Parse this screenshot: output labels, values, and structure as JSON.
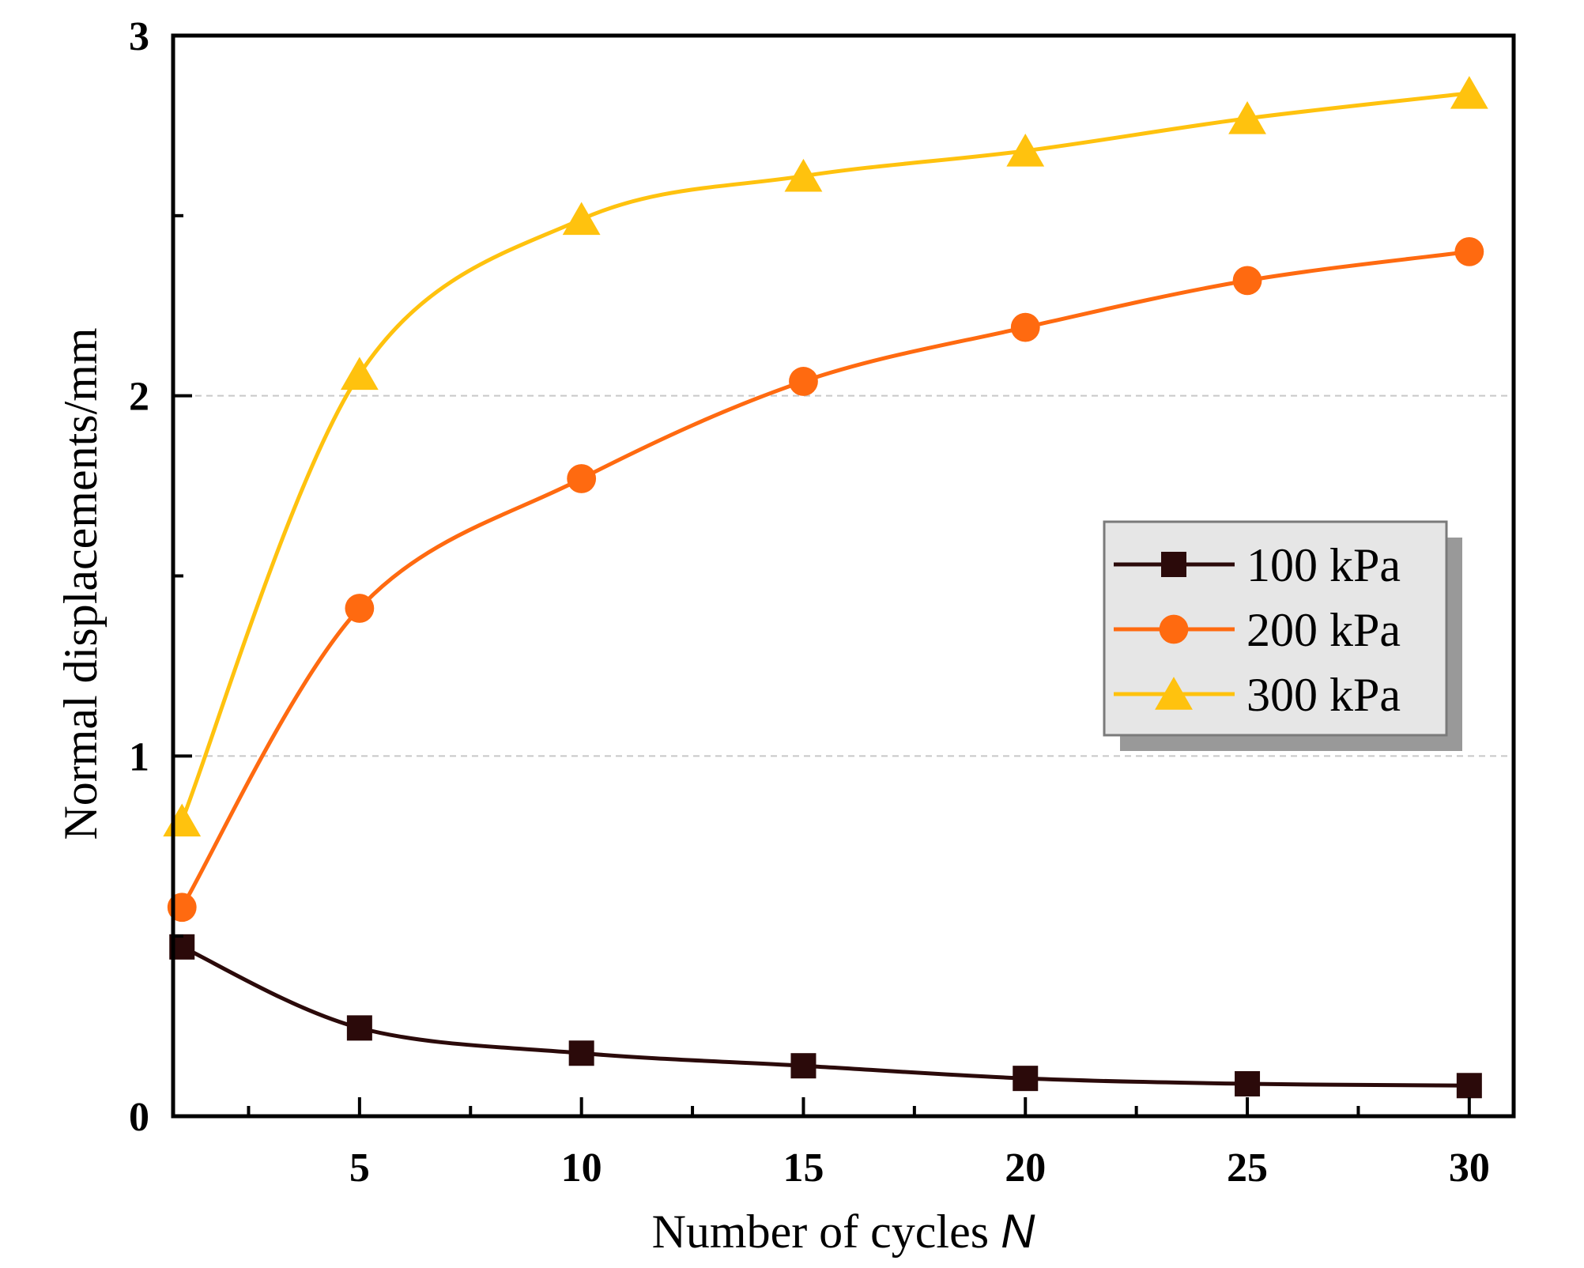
{
  "chart_data": {
    "type": "line",
    "title": "",
    "xlabel": "Number of cycles ",
    "xlabel_var": "N",
    "ylabel": "Normal displacements/mm",
    "xlim": [
      0.8,
      31
    ],
    "ylim": [
      0,
      3
    ],
    "xticks": [
      5,
      10,
      15,
      20,
      25,
      30
    ],
    "yticks": [
      0,
      1,
      2,
      3
    ],
    "gridlines_y": [
      1,
      2
    ],
    "legend_position": "center-right",
    "x": [
      1,
      5,
      10,
      15,
      20,
      25,
      30
    ],
    "series": [
      {
        "name": "100 kPa",
        "color": "#2b0a0a",
        "marker": "square",
        "values": [
          0.47,
          0.245,
          0.175,
          0.14,
          0.105,
          0.09,
          0.085
        ]
      },
      {
        "name": "200 kPa",
        "color": "#ff6a10",
        "marker": "circle",
        "values": [
          0.58,
          1.41,
          1.77,
          2.04,
          2.19,
          2.32,
          2.4
        ]
      },
      {
        "name": "300 kPa",
        "color": "#ffc20e",
        "marker": "triangle",
        "values": [
          0.82,
          2.06,
          2.49,
          2.61,
          2.68,
          2.77,
          2.84
        ]
      }
    ]
  }
}
